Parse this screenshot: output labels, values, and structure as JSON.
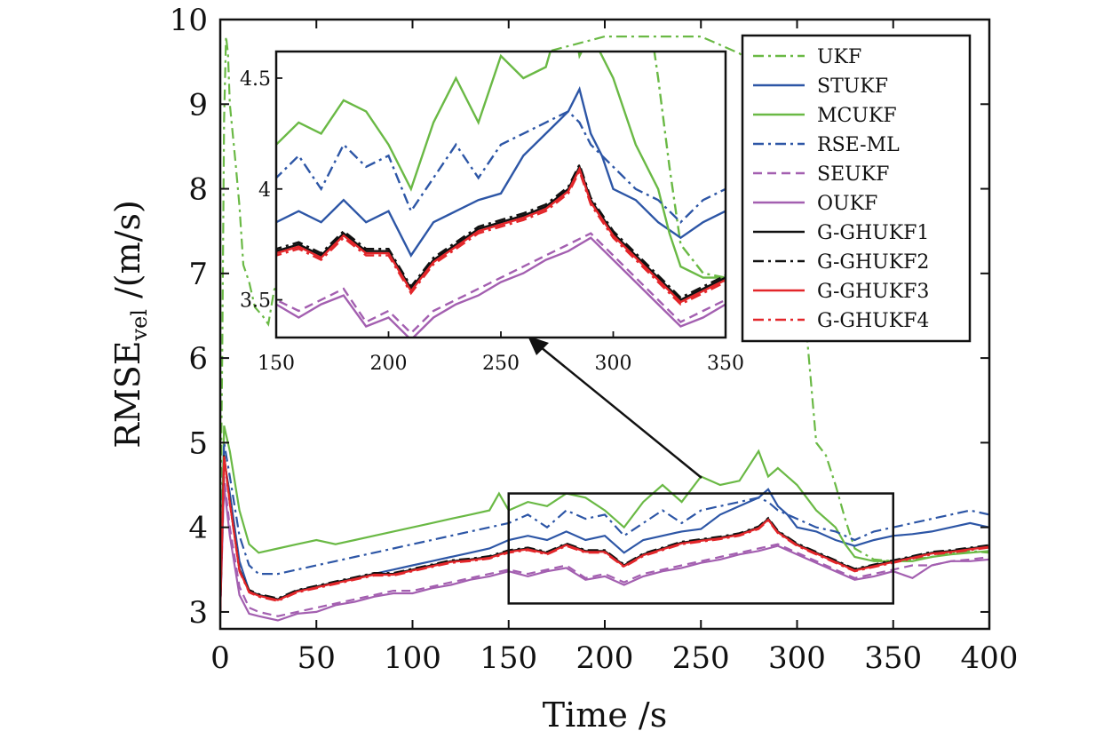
{
  "chart_data": {
    "type": "line",
    "xlabel": "Time /s",
    "ylabel_main": "RMSE",
    "ylabel_sub": "vel",
    "ylabel_unit": " /(m/s)",
    "xlim": [
      0,
      400
    ],
    "ylim": [
      2.8,
      10
    ],
    "xticks": [
      0,
      50,
      100,
      150,
      200,
      250,
      300,
      350,
      400
    ],
    "yticks": [
      3,
      4,
      5,
      6,
      7,
      8,
      9,
      10
    ],
    "legend_position": "top-right",
    "grid": false,
    "inset": {
      "xlim": [
        150,
        350
      ],
      "ylim": [
        3.33,
        4.62
      ],
      "xticks": [
        150,
        200,
        250,
        300,
        350
      ],
      "yticks": [
        3.5,
        4,
        4.5
      ],
      "ytick_labels": [
        "3.5",
        "4",
        "4.5"
      ],
      "zoom_box": {
        "x": [
          150,
          350
        ],
        "y": [
          3.1,
          4.4
        ]
      }
    },
    "series": [
      {
        "name": "UKF",
        "color": "#6ab945",
        "dash": "dashdot",
        "x": [
          0,
          1,
          2,
          3,
          4,
          5,
          8,
          10,
          12,
          15,
          18,
          20,
          22,
          25,
          28,
          30,
          40,
          60,
          80,
          100,
          150,
          200,
          250,
          270,
          285,
          290,
          295,
          300,
          305,
          310,
          315,
          320,
          325,
          330,
          340,
          350,
          360,
          370,
          380,
          390,
          400
        ],
        "y": [
          3.8,
          6.0,
          8.8,
          9.8,
          9.6,
          9.0,
          8.3,
          7.8,
          7.1,
          6.9,
          6.6,
          6.55,
          6.5,
          6.4,
          6.8,
          6.9,
          7.5,
          8.0,
          8.5,
          9.0,
          9.5,
          9.8,
          9.8,
          9.6,
          9.3,
          9.0,
          8.4,
          7.6,
          6.3,
          5.0,
          4.85,
          4.5,
          4.1,
          3.75,
          3.62,
          3.6,
          3.62,
          3.65,
          3.7,
          3.72,
          3.7
        ]
      },
      {
        "name": "STUKF",
        "color": "#2d56a6",
        "dash": "solid",
        "x": [
          0,
          2,
          5,
          10,
          15,
          20,
          30,
          40,
          50,
          60,
          70,
          80,
          90,
          100,
          110,
          120,
          130,
          140,
          150,
          160,
          170,
          180,
          190,
          200,
          210,
          220,
          230,
          240,
          250,
          260,
          270,
          280,
          285,
          290,
          295,
          300,
          310,
          320,
          330,
          340,
          350,
          360,
          370,
          380,
          390,
          400
        ],
        "y": [
          3.0,
          4.8,
          4.4,
          3.6,
          3.25,
          3.2,
          3.15,
          3.25,
          3.3,
          3.35,
          3.4,
          3.45,
          3.5,
          3.55,
          3.6,
          3.65,
          3.7,
          3.75,
          3.85,
          3.9,
          3.85,
          3.95,
          3.85,
          3.9,
          3.7,
          3.85,
          3.9,
          3.95,
          3.98,
          4.15,
          4.25,
          4.35,
          4.45,
          4.25,
          4.15,
          4.0,
          3.95,
          3.85,
          3.78,
          3.85,
          3.9,
          3.92,
          3.95,
          4.0,
          4.05,
          4.0
        ]
      },
      {
        "name": "MCUKF",
        "color": "#6ab945",
        "dash": "solid",
        "x": [
          0,
          2,
          5,
          10,
          15,
          20,
          30,
          40,
          50,
          60,
          70,
          80,
          90,
          100,
          110,
          120,
          130,
          140,
          145,
          150,
          160,
          170,
          180,
          190,
          200,
          210,
          220,
          230,
          240,
          250,
          260,
          270,
          280,
          285,
          290,
          300,
          310,
          320,
          325,
          330,
          340,
          350,
          360,
          370,
          380,
          390,
          400
        ],
        "y": [
          3.0,
          5.2,
          4.9,
          4.2,
          3.8,
          3.7,
          3.75,
          3.8,
          3.85,
          3.8,
          3.85,
          3.9,
          3.95,
          4.0,
          4.05,
          4.1,
          4.15,
          4.2,
          4.4,
          4.2,
          4.3,
          4.25,
          4.4,
          4.35,
          4.2,
          4.0,
          4.3,
          4.5,
          4.3,
          4.6,
          4.5,
          4.55,
          4.9,
          4.6,
          4.7,
          4.5,
          4.2,
          4.0,
          3.8,
          3.65,
          3.6,
          3.6,
          3.6,
          3.65,
          3.68,
          3.7,
          3.72
        ]
      },
      {
        "name": "RSE-ML",
        "color": "#2d56a6",
        "dash": "dashdot",
        "x": [
          0,
          2,
          5,
          10,
          15,
          20,
          30,
          40,
          50,
          60,
          70,
          80,
          90,
          100,
          110,
          120,
          130,
          140,
          150,
          160,
          170,
          180,
          190,
          200,
          210,
          220,
          230,
          240,
          250,
          260,
          270,
          280,
          285,
          290,
          300,
          310,
          320,
          330,
          340,
          350,
          360,
          370,
          380,
          390,
          400
        ],
        "y": [
          3.0,
          5.0,
          4.6,
          3.9,
          3.55,
          3.45,
          3.45,
          3.5,
          3.55,
          3.6,
          3.65,
          3.7,
          3.75,
          3.8,
          3.85,
          3.9,
          3.95,
          4.0,
          4.05,
          4.15,
          4.0,
          4.2,
          4.1,
          4.15,
          3.9,
          4.05,
          4.2,
          4.05,
          4.2,
          4.25,
          4.3,
          4.35,
          4.3,
          4.2,
          4.1,
          4.0,
          3.95,
          3.85,
          3.95,
          4.0,
          4.05,
          4.1,
          4.15,
          4.2,
          4.15
        ]
      },
      {
        "name": "SEUKF",
        "color": "#a35fb0",
        "dash": "dashed",
        "x": [
          0,
          2,
          5,
          10,
          15,
          20,
          30,
          40,
          50,
          60,
          70,
          80,
          90,
          100,
          110,
          120,
          130,
          140,
          150,
          160,
          170,
          180,
          190,
          200,
          210,
          220,
          230,
          240,
          250,
          260,
          270,
          280,
          290,
          300,
          310,
          320,
          330,
          340,
          350,
          360,
          370,
          380,
          390,
          400
        ],
        "y": [
          3.0,
          4.6,
          4.0,
          3.3,
          3.05,
          3.0,
          2.95,
          3.0,
          3.05,
          3.1,
          3.15,
          3.2,
          3.25,
          3.25,
          3.3,
          3.35,
          3.4,
          3.45,
          3.5,
          3.45,
          3.5,
          3.55,
          3.4,
          3.45,
          3.35,
          3.45,
          3.5,
          3.55,
          3.6,
          3.65,
          3.7,
          3.75,
          3.8,
          3.7,
          3.6,
          3.5,
          3.4,
          3.45,
          3.5,
          3.55,
          3.55,
          3.6,
          3.62,
          3.65
        ]
      },
      {
        "name": "OUKF",
        "color": "#a35fb0",
        "dash": "solid",
        "x": [
          0,
          2,
          5,
          10,
          15,
          20,
          30,
          40,
          50,
          60,
          70,
          80,
          90,
          100,
          110,
          120,
          130,
          140,
          150,
          160,
          170,
          180,
          190,
          200,
          210,
          220,
          230,
          240,
          250,
          260,
          270,
          280,
          290,
          300,
          310,
          320,
          330,
          340,
          350,
          360,
          370,
          380,
          390,
          400
        ],
        "y": [
          3.0,
          4.5,
          3.9,
          3.2,
          2.98,
          2.95,
          2.9,
          2.98,
          3.0,
          3.08,
          3.12,
          3.18,
          3.22,
          3.22,
          3.28,
          3.32,
          3.38,
          3.42,
          3.48,
          3.42,
          3.48,
          3.52,
          3.38,
          3.42,
          3.32,
          3.42,
          3.48,
          3.52,
          3.58,
          3.62,
          3.68,
          3.72,
          3.78,
          3.68,
          3.58,
          3.48,
          3.38,
          3.42,
          3.48,
          3.4,
          3.55,
          3.6,
          3.6,
          3.62
        ]
      },
      {
        "name": "G-GHUKF1",
        "color": "#111111",
        "dash": "solid",
        "x": [
          0,
          2,
          5,
          10,
          15,
          20,
          30,
          40,
          50,
          60,
          70,
          80,
          90,
          100,
          110,
          120,
          130,
          140,
          150,
          160,
          170,
          180,
          190,
          200,
          210,
          220,
          230,
          240,
          250,
          260,
          270,
          280,
          285,
          290,
          300,
          310,
          320,
          330,
          340,
          350,
          360,
          370,
          380,
          390,
          400
        ],
        "y": [
          3.0,
          4.85,
          4.3,
          3.5,
          3.25,
          3.2,
          3.15,
          3.25,
          3.3,
          3.35,
          3.4,
          3.45,
          3.45,
          3.5,
          3.55,
          3.6,
          3.62,
          3.65,
          3.72,
          3.75,
          3.7,
          3.8,
          3.72,
          3.72,
          3.55,
          3.68,
          3.75,
          3.82,
          3.85,
          3.88,
          3.92,
          4.0,
          4.1,
          3.95,
          3.8,
          3.7,
          3.6,
          3.5,
          3.55,
          3.6,
          3.65,
          3.7,
          3.72,
          3.75,
          3.78
        ]
      },
      {
        "name": "G-GHUKF2",
        "color": "#111111",
        "dash": "dashdot",
        "x": [
          0,
          2,
          5,
          10,
          15,
          20,
          30,
          40,
          50,
          60,
          70,
          80,
          90,
          100,
          110,
          120,
          130,
          140,
          150,
          160,
          170,
          180,
          190,
          200,
          210,
          220,
          230,
          240,
          250,
          260,
          270,
          280,
          285,
          290,
          300,
          310,
          320,
          330,
          340,
          350,
          360,
          370,
          380,
          390,
          400
        ],
        "y": [
          3.0,
          4.85,
          4.3,
          3.5,
          3.26,
          3.21,
          3.16,
          3.26,
          3.31,
          3.36,
          3.41,
          3.46,
          3.46,
          3.51,
          3.56,
          3.61,
          3.63,
          3.66,
          3.73,
          3.76,
          3.71,
          3.81,
          3.73,
          3.73,
          3.56,
          3.69,
          3.76,
          3.83,
          3.86,
          3.89,
          3.93,
          4.01,
          4.11,
          3.96,
          3.81,
          3.71,
          3.61,
          3.51,
          3.56,
          3.61,
          3.66,
          3.71,
          3.73,
          3.76,
          3.79
        ]
      },
      {
        "name": "G-GHUKF3",
        "color": "#e3262a",
        "dash": "solid",
        "x": [
          0,
          2,
          5,
          10,
          15,
          20,
          30,
          40,
          50,
          60,
          70,
          80,
          90,
          100,
          110,
          120,
          130,
          140,
          150,
          160,
          170,
          180,
          190,
          200,
          210,
          220,
          230,
          240,
          250,
          260,
          270,
          280,
          285,
          290,
          300,
          310,
          320,
          330,
          340,
          350,
          360,
          370,
          380,
          390,
          400
        ],
        "y": [
          3.0,
          4.84,
          4.29,
          3.49,
          3.24,
          3.19,
          3.14,
          3.24,
          3.29,
          3.34,
          3.39,
          3.44,
          3.44,
          3.49,
          3.54,
          3.59,
          3.61,
          3.64,
          3.71,
          3.74,
          3.69,
          3.79,
          3.71,
          3.71,
          3.54,
          3.67,
          3.74,
          3.81,
          3.84,
          3.87,
          3.91,
          3.99,
          4.09,
          3.94,
          3.79,
          3.69,
          3.59,
          3.49,
          3.54,
          3.59,
          3.64,
          3.69,
          3.71,
          3.74,
          3.77
        ]
      },
      {
        "name": "G-GHUKF4",
        "color": "#e3262a",
        "dash": "dashdot",
        "x": [
          0,
          2,
          5,
          10,
          15,
          20,
          30,
          40,
          50,
          60,
          70,
          80,
          90,
          100,
          110,
          120,
          130,
          140,
          150,
          160,
          170,
          180,
          190,
          200,
          210,
          220,
          230,
          240,
          250,
          260,
          270,
          280,
          285,
          290,
          300,
          310,
          320,
          330,
          340,
          350,
          360,
          370,
          380,
          390,
          400
        ],
        "y": [
          3.0,
          4.83,
          4.28,
          3.48,
          3.23,
          3.18,
          3.13,
          3.23,
          3.28,
          3.33,
          3.38,
          3.43,
          3.43,
          3.48,
          3.53,
          3.58,
          3.6,
          3.63,
          3.7,
          3.73,
          3.68,
          3.78,
          3.7,
          3.7,
          3.53,
          3.66,
          3.73,
          3.8,
          3.83,
          3.86,
          3.9,
          3.98,
          4.08,
          3.93,
          3.78,
          3.68,
          3.58,
          3.48,
          3.53,
          3.58,
          3.63,
          3.68,
          3.7,
          3.73,
          3.76
        ]
      }
    ]
  }
}
